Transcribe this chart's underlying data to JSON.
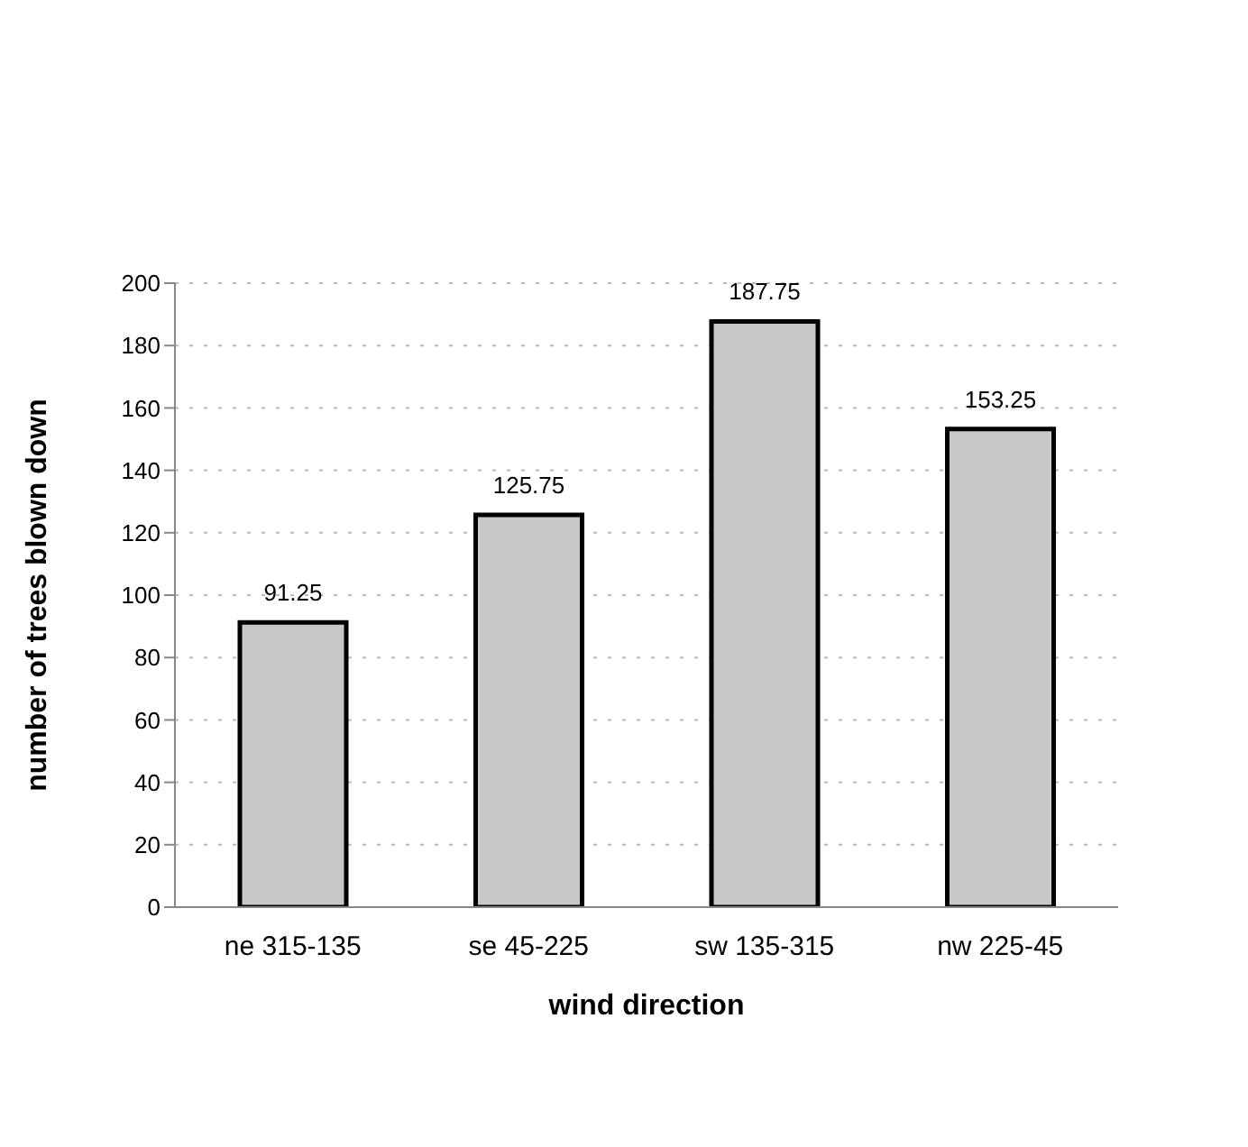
{
  "chart_data": {
    "type": "bar",
    "xlabel": "wind direction",
    "ylabel": "number of trees blown down",
    "categories": [
      "ne 315-135",
      "se 45-225",
      "sw 135-315",
      "nw 225-45"
    ],
    "values": [
      91.25,
      125.75,
      187.75,
      153.25
    ],
    "color": "#c8c8c8",
    "ylim": [
      0,
      200
    ],
    "yticks": [
      0,
      20,
      40,
      60,
      80,
      100,
      120,
      140,
      160,
      180,
      200
    ],
    "grid": "y",
    "data_labels": true
  }
}
